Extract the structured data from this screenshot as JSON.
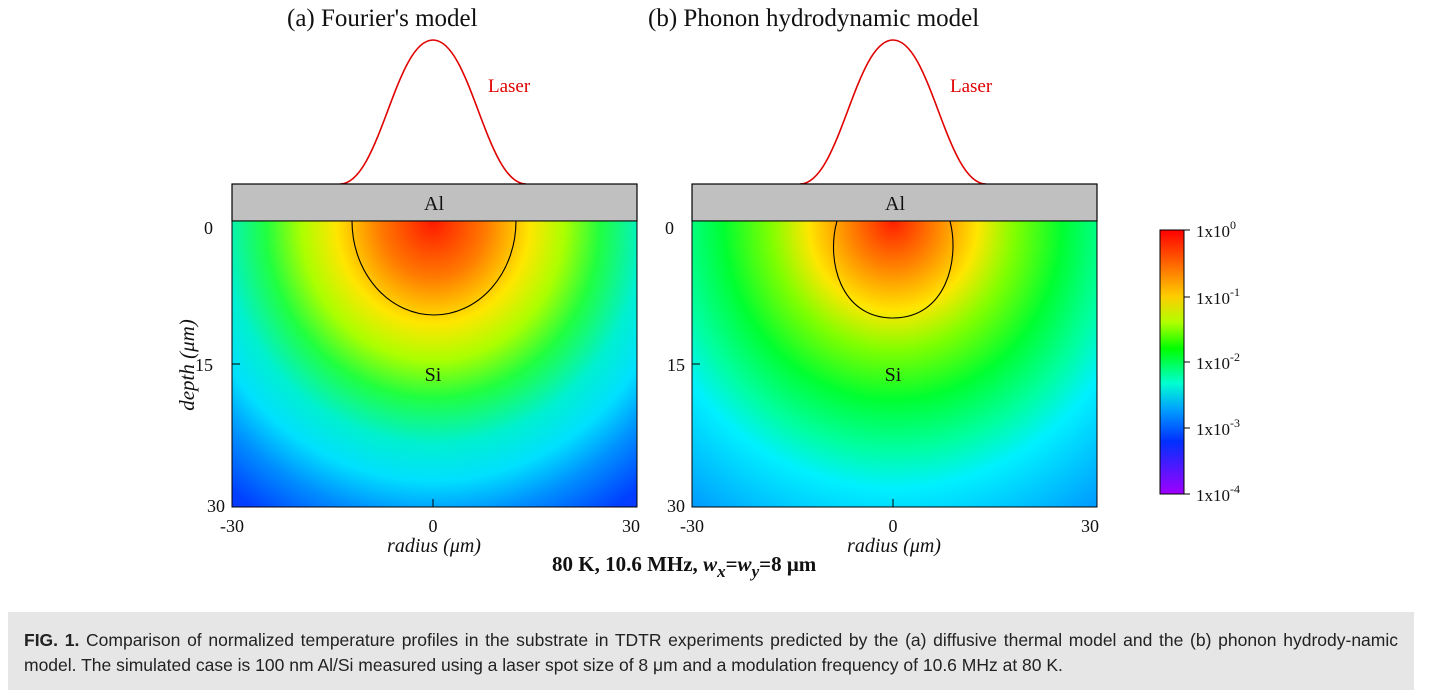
{
  "figure": {
    "panel_a": {
      "title": "(a) Fourier's model",
      "laser_label": "Laser",
      "layer_label": "Al",
      "substrate_label": "Si",
      "ylabel": "depth (μm)",
      "xlabel": "radius (μm)",
      "xticks": [
        "-30",
        "0",
        "30"
      ],
      "yticks": [
        "0",
        "15",
        "30"
      ]
    },
    "panel_b": {
      "title": "(b) Phonon hydrodynamic model",
      "laser_label": "Laser",
      "layer_label": "Al",
      "substrate_label": "Si",
      "xlabel": "radius (μm)",
      "xticks": [
        "-30",
        "0",
        "30"
      ],
      "yticks": [
        "0",
        "15",
        "30"
      ]
    },
    "colorbar": {
      "scale": "log",
      "ticks": [
        {
          "base": "1x10",
          "exp": "0"
        },
        {
          "base": "1x10",
          "exp": "-1"
        },
        {
          "base": "1x10",
          "exp": "-2"
        },
        {
          "base": "1x10",
          "exp": "-3"
        },
        {
          "base": "1x10",
          "exp": "-4"
        }
      ],
      "colors": [
        "#ff0000",
        "#ff8c00",
        "#ffff00",
        "#00ff00",
        "#00ffff",
        "#0040ff",
        "#8000ff"
      ]
    },
    "condition": {
      "prefix": "80 K, 10.6 MHz, ",
      "w": "w",
      "sub_x": "x",
      "eq": "=",
      "sub_y": "y",
      "suffix": "=8 μm"
    }
  },
  "caption": {
    "label": "FIG. 1.",
    "text": " Comparison of normalized temperature profiles in the substrate in TDTR experiments predicted by the (a) diffusive thermal model and the (b) phonon hydrody-namic model. The simulated case is 100 nm Al/Si measured using a laser spot size of 8 μm and a modulation frequency of 10.6 MHz at 80 K."
  }
}
